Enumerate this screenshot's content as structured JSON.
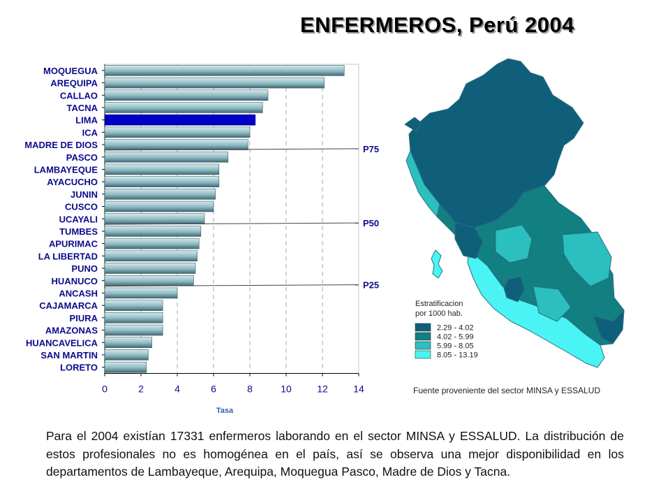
{
  "title": "ENFERMEROS, Perú 2004",
  "chart_data": {
    "type": "bar",
    "orientation": "horizontal",
    "categories": [
      "MOQUEGUA",
      "AREQUIPA",
      "CALLAO",
      "TACNA",
      "LIMA",
      "ICA",
      "MADRE DE DIOS",
      "PASCO",
      "LAMBAYEQUE",
      "AYACUCHO",
      "JUNIN",
      "CUSCO",
      "UCAYALI",
      "TUMBES",
      "APURIMAC",
      "LA LIBERTAD",
      "PUNO",
      "HUANUCO",
      "ANCASH",
      "CAJAMARCA",
      "PIURA",
      "AMAZONAS",
      "HUANCAVELICA",
      "SAN MARTIN",
      "LORETO"
    ],
    "values": [
      13.2,
      12.1,
      9.0,
      8.7,
      8.3,
      8.0,
      7.9,
      6.8,
      6.3,
      6.3,
      6.1,
      6.0,
      5.5,
      5.3,
      5.2,
      5.1,
      5.0,
      4.9,
      4.0,
      3.2,
      3.2,
      3.2,
      2.6,
      2.4,
      2.3
    ],
    "highlight": "LIMA",
    "xlabel": "Tasa",
    "xlim": [
      0,
      14
    ],
    "xticks": [
      0,
      2,
      4,
      6,
      8,
      10,
      12,
      14
    ],
    "grid": "vertical dashed",
    "percentiles": [
      {
        "label": "P75",
        "after": "MADRE DE DIOS"
      },
      {
        "label": "P50",
        "after": "UCAYALI"
      },
      {
        "label": "P25",
        "after": "HUANUCO"
      }
    ],
    "colors": {
      "bar": "#9fc6cf",
      "bar_dark": "#3f6a74",
      "highlight": "#0000c8",
      "text": "#0b0b8c"
    }
  },
  "map": {
    "legend_title_line1": "Estratificacion",
    "legend_title_line2": "por 1000 hab.",
    "legend": [
      {
        "label": "2.29 - 4.02",
        "color": "#0f5f7a"
      },
      {
        "label": "4.02 - 5.99",
        "color": "#127f80"
      },
      {
        "label": "5.99 - 8.05",
        "color": "#2bbfbf"
      },
      {
        "label": "8.05 - 13.19",
        "color": "#4af4f4"
      }
    ]
  },
  "source": "Fuente proveniente del sector MINSA y ESSALUD",
  "paragraph": "Para el 2004 existían 17331 enfermeros laborando en el sector MINSA y ESSALUD. La distribución de estos profesionales no es homogénea en el país, así se observa una mejor disponibilidad en los departamentos de Lambayeque, Arequipa, Moquegua Pasco, Madre de Dios y Tacna."
}
